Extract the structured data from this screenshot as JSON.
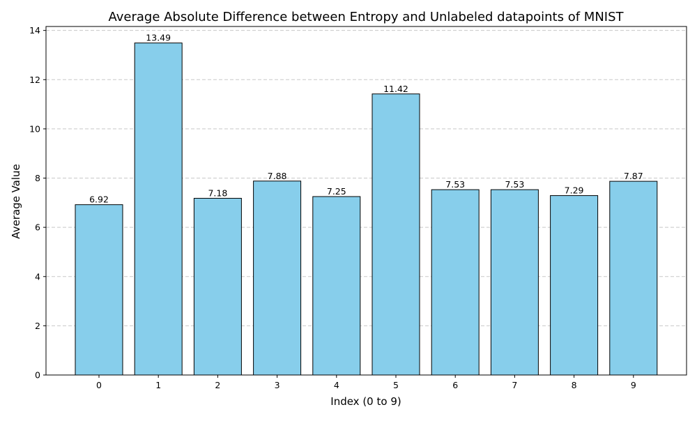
{
  "chart_data": {
    "type": "bar",
    "title": "Average Absolute Difference between Entropy and Unlabeled datapoints of MNIST",
    "xlabel": "Index (0 to 9)",
    "ylabel": "Average Value",
    "categories": [
      "0",
      "1",
      "2",
      "3",
      "4",
      "5",
      "6",
      "7",
      "8",
      "9"
    ],
    "values": [
      6.92,
      13.49,
      7.18,
      7.88,
      7.25,
      11.42,
      7.53,
      7.53,
      7.29,
      7.87
    ],
    "value_labels": [
      "6.92",
      "13.49",
      "7.18",
      "7.88",
      "7.25",
      "11.42",
      "7.53",
      "7.53",
      "7.29",
      "7.87"
    ],
    "ylim": [
      0,
      14.16
    ],
    "yticks": [
      0,
      2,
      4,
      6,
      8,
      10,
      12,
      14
    ],
    "grid": "y-dashed",
    "colors": {
      "bar_fill": "#87ceeb",
      "bar_edge": "#000000",
      "grid": "#c8c8c8"
    }
  }
}
